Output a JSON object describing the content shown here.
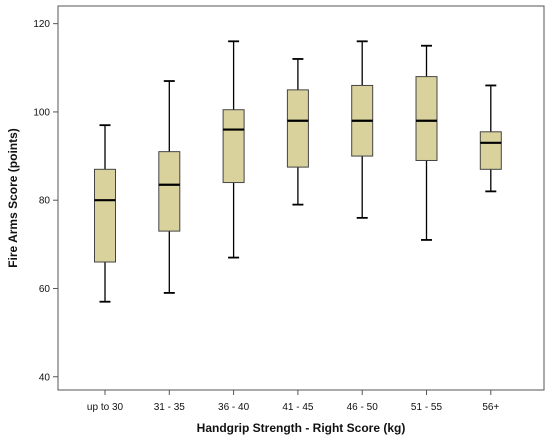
{
  "chart_data": {
    "type": "box",
    "xlabel": "Handgrip Strength - Right Score (kg)",
    "ylabel": "Fire Arms Score (points)",
    "ylim": [
      37,
      124
    ],
    "yticks": [
      40,
      60,
      80,
      100,
      120
    ],
    "grid": false,
    "box_color": "#d9d29c",
    "categories": [
      "up to 30",
      "31 - 35",
      "36 - 40",
      "41 - 45",
      "46 - 50",
      "51 - 55",
      "56+"
    ],
    "boxes": [
      {
        "category": "up to 30",
        "min": 57,
        "q1": 66,
        "median": 80,
        "q3": 87,
        "max": 97
      },
      {
        "category": "31 - 35",
        "min": 59,
        "q1": 73,
        "median": 83.5,
        "q3": 91,
        "max": 107
      },
      {
        "category": "36 - 40",
        "min": 67,
        "q1": 84,
        "median": 96,
        "q3": 100.5,
        "max": 116
      },
      {
        "category": "41 - 45",
        "min": 79,
        "q1": 87.5,
        "median": 98,
        "q3": 105,
        "max": 112
      },
      {
        "category": "46 - 50",
        "min": 76,
        "q1": 90,
        "median": 98,
        "q3": 106,
        "max": 116
      },
      {
        "category": "51 - 55",
        "min": 71,
        "q1": 89,
        "median": 98,
        "q3": 108,
        "max": 115
      },
      {
        "category": "56+",
        "min": 82,
        "q1": 87,
        "median": 93,
        "q3": 95.5,
        "max": 106
      }
    ]
  }
}
